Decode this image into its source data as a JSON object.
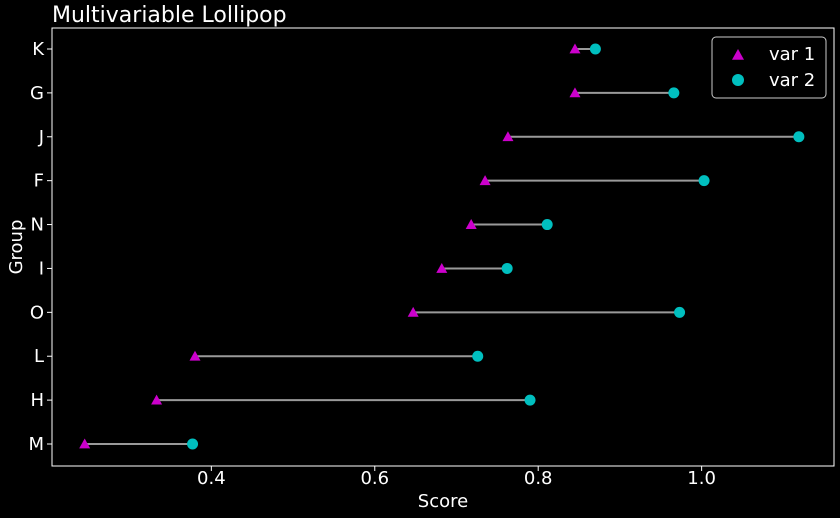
{
  "chart_data": {
    "type": "scatter",
    "title": "Multivariable Lollipop",
    "xlabel": "Score",
    "ylabel": "Group",
    "xlim": [
      0.205,
      1.162
    ],
    "x_ticks": [
      0.4,
      0.6,
      0.8,
      1.0
    ],
    "x_tick_labels": [
      "0.4",
      "0.6",
      "0.8",
      "1.0"
    ],
    "categories": [
      "M",
      "H",
      "L",
      "O",
      "I",
      "N",
      "F",
      "J",
      "G",
      "K"
    ],
    "series": [
      {
        "name": "var 1",
        "marker": "triangle",
        "color": "#cc00cc",
        "values": [
          0.245,
          0.333,
          0.38,
          0.647,
          0.682,
          0.718,
          0.735,
          0.763,
          0.845,
          0.845
        ]
      },
      {
        "name": "var 2",
        "marker": "circle",
        "color": "#00bfbf",
        "values": [
          0.377,
          0.79,
          0.726,
          0.973,
          0.762,
          0.811,
          1.003,
          1.119,
          0.966,
          0.87
        ]
      }
    ],
    "connector_color": "#9a9a9a",
    "grid": false,
    "legend_position": "top-right",
    "background": "#000000",
    "text_color": "#ffffff"
  }
}
